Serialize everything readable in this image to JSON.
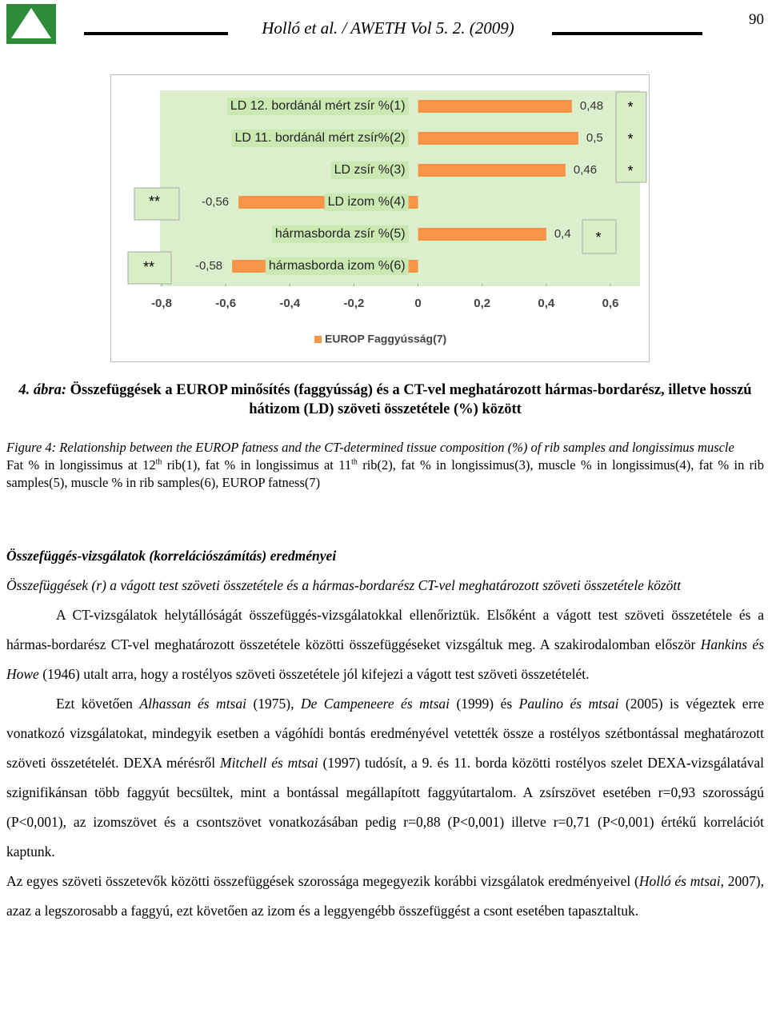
{
  "header": {
    "title": "Holló et al. / AWETH Vol 5. 2. (2009)",
    "page_number": "90"
  },
  "chart_data": {
    "type": "hbar",
    "categories": [
      "LD 12. bordánál mért zsír %(1)",
      "LD 11. bordánál mért zsír%(2)",
      "LD zsír %(3)",
      "LD izom %(4)",
      "hármasborda zsír %(5)",
      "hármasborda izom %(6)"
    ],
    "series": [
      {
        "name": "EUROP Faggyússág(7)",
        "color": "#f79646",
        "values": [
          0.48,
          0.5,
          0.46,
          -0.56,
          0.4,
          -0.58
        ],
        "value_labels": [
          "0,48",
          "0,5",
          "0,46",
          "-0,56",
          "0,4",
          "-0,58"
        ]
      }
    ],
    "annotations": [
      "*",
      "*",
      "*",
      "**",
      "*",
      "**"
    ],
    "xlim": [
      -0.8,
      0.6
    ],
    "xticks": [
      {
        "value": -0.8,
        "label": "-0,8"
      },
      {
        "value": -0.6,
        "label": "-0,6"
      },
      {
        "value": -0.4,
        "label": "-0,4"
      },
      {
        "value": -0.2,
        "label": "-0,2"
      },
      0,
      {
        "value": 0.2,
        "label": "0,2"
      },
      {
        "value": 0.4,
        "label": "0,4"
      },
      {
        "value": 0.6,
        "label": "0,6"
      }
    ],
    "legend": "bottom"
  },
  "caption": {
    "hu_label": "4. ábra:",
    "hu_text": "Összefüggések a EUROP minősítés (faggyússág) és a CT-vel meghatározott hármas-bordarész, illetve hosszú hátizom (LD) szöveti összetétele (%) között",
    "en_title": "Figure 4: Relationship between the EUROP fatness and the CT-determined tissue composition (%) of rib samples and longissimus muscle",
    "en_body": [
      "Fat % in longissimus at 12",
      "th",
      " rib(1), fat % in longissimus at 11",
      "th",
      " rib(2), fat % in longissimus(3), muscle % in longissimus(4), fat % in rib samples(5), muscle % in rib samples(6), EUROP fatness(7)"
    ]
  },
  "body": {
    "heading": "Összefüggés-vizsgálatok (korrelációszámítás) eredményei",
    "subheading": "Összefüggések (r) a vágott test szöveti összetétele és a hármas-bordarész CT-vel meghatározott szöveti összetétele között",
    "paragraphs": [
      [
        "A CT-vizsgálatok helytállóságát összefüggés-vizsgálatokkal ellenőriztük. Elsőként a vágott test szöveti összetétele és a hármas-bordarész CT-vel meghatározott összetétele közötti összefüggéseket vizsgáltuk meg. A szakirodalomban először ",
        "Hankins és Howe",
        " (1946) utalt arra, hogy a rostélyos szöveti összetétele jól kifejezi a vágott test szöveti összetételét."
      ],
      [
        "Ezt követően ",
        "Alhassan és mtsai",
        " (1975), ",
        "De Campeneere és mtsai",
        " (1999) és ",
        "Paulino és mtsai",
        " (2005) is végeztek erre vonatkozó vizsgálatokat, mindegyik esetben a vágóhídi bontás eredményével vetették össze a rostélyos szétbontással meghatározott szöveti összetételét. DEXA mérésről ",
        "Mitchell és mtsai",
        " (1997) tudósít, a 9. és 11. borda közötti rostélyos szelet DEXA-vizsgálatával szignifikánsan több faggyút becsültek, mint a bontással megállapított faggyútartalom. A zsírszövet esetében r=0,93 szorosságú (P<0,001), az izomszövet és a csontszövet vonatkozásában pedig r=0,88 (P<0,001) illetve r=0,71 (P<0,001) értékű korrelációt kaptunk."
      ],
      [
        "Az egyes szöveti összetevők közötti összefüggések szorossága megegyezik korábbi vizsgálatok eredményeivel (",
        "Holló és mtsai,",
        " 2007), azaz a legszorosabb a faggyú, ezt követően az izom és a leggyengébb összefüggést a csont esetében tapasztaltuk."
      ]
    ]
  }
}
